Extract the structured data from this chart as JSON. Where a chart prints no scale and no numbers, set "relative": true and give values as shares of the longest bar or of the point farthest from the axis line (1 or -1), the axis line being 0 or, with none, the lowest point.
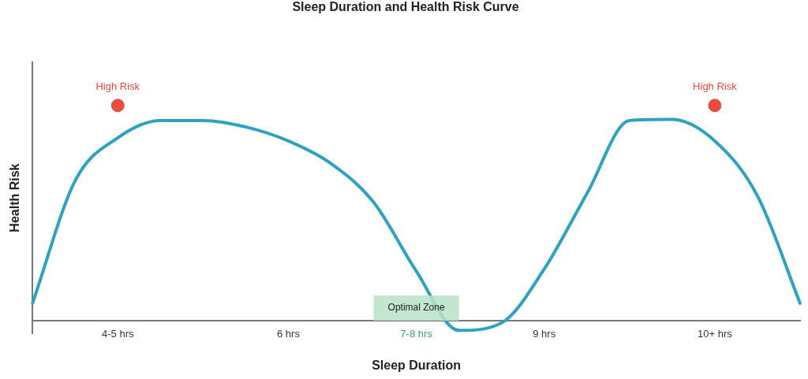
{
  "chart_data": {
    "type": "line",
    "title": "Sleep Duration and Health Risk Curve",
    "xlabel": "Sleep Duration",
    "ylabel": "Health Risk",
    "relative": true,
    "legend": false,
    "grid": false,
    "marker": "none",
    "line_style": "solid",
    "categories": [
      null,
      null,
      "4-5 hrs",
      null,
      null,
      null,
      "6 hrs",
      null,
      null,
      "7-8 hrs",
      null,
      null,
      "9 hrs",
      null,
      null,
      null,
      "10+ hrs",
      null,
      null
    ],
    "series": [
      {
        "color": "#2fa2c1",
        "values": [
          0.081,
          0.65,
          0.85,
          0.93,
          0.93,
          0.9,
          0.835,
          0.73,
          0.55,
          0.23,
          -0.045,
          -0.01,
          0.24,
          0.59,
          0.93,
          0.935,
          0.835,
          0.58,
          0.081
        ]
      },
      {
        "type": "scatter",
        "color": "#e74c3c",
        "marker": "circle",
        "x": [
          "4-5 hrs",
          "10+ hrs"
        ],
        "values": [
          1,
          1
        ]
      }
    ],
    "annotations": [
      {
        "text": "High Risk",
        "x": "4-5 hrs",
        "y": 1
      },
      {
        "text": "High Risk",
        "x": "10+ hrs",
        "y": 1
      },
      "Optimal Zone"
    ]
  }
}
